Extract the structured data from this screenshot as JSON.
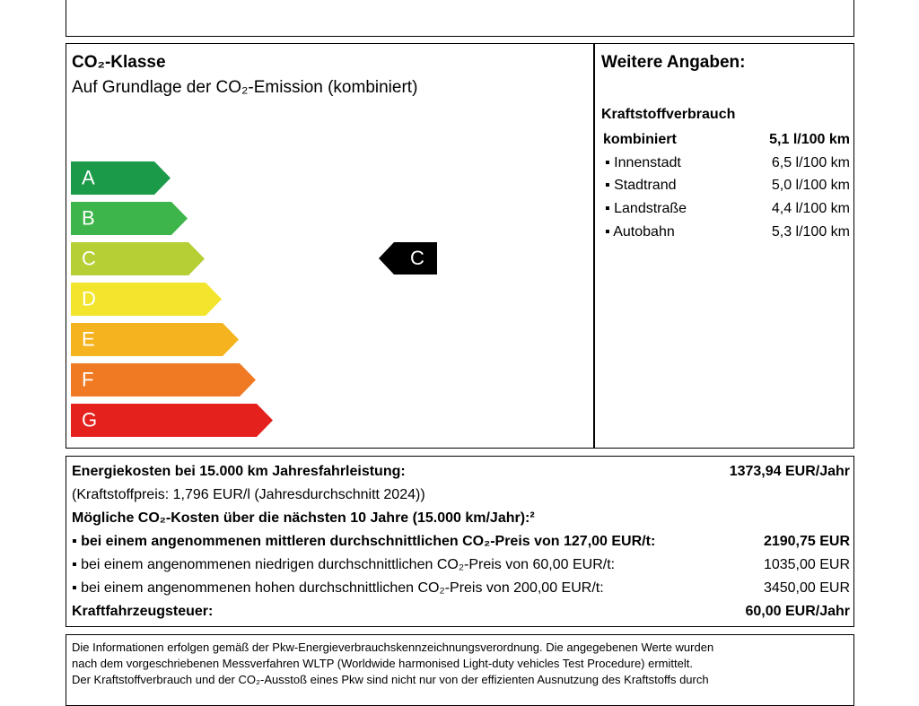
{
  "co2_class": {
    "title": "CO₂-Klasse",
    "subtitle": "Auf Grundlage der CO₂-Emission (kombiniert)",
    "classes": [
      "A",
      "B",
      "C",
      "D",
      "E",
      "F",
      "G"
    ],
    "colors": [
      "#1b9a4a",
      "#3db54a",
      "#b5cf35",
      "#f2e52c",
      "#f5b41f",
      "#ef7a23",
      "#e4211d"
    ],
    "current": "C"
  },
  "further": {
    "title": "Weitere Angaben:",
    "heading": "Kraftstoffverbrauch",
    "rows": [
      [
        "kombiniert",
        "5,1 l/100 km"
      ],
      [
        "▪ Innenstadt",
        "6,5 l/100 km"
      ],
      [
        "▪ Stadtrand",
        "5,0 l/100 km"
      ],
      [
        "▪ Landstraße",
        "4,4 l/100 km"
      ],
      [
        "▪ Autobahn",
        "5,3 l/100 km"
      ]
    ]
  },
  "costs": {
    "rows": [
      [
        "Energiekosten bei 15.000 km Jahresfahrleistung:",
        "1373,94 EUR/Jahr"
      ],
      [
        "(Kraftstoffpreis: 1,796 EUR/l (Jahresdurchschnitt 2024))"
      ],
      [
        "Mögliche CO₂-Kosten über die nächsten 10 Jahre (15.000 km/Jahr):²"
      ],
      [
        "▪ bei einem angenommenen mittleren durchschnittlichen CO₂-Preis von 127,00 EUR/t:",
        "2190,75 EUR"
      ],
      [
        "▪ bei einem angenommenen niedrigen durchschnittlichen CO₂-Preis von 60,00 EUR/t:",
        "1035,00 EUR"
      ],
      [
        "▪ bei einem angenommenen hohen durchschnittlichen CO₂-Preis von 200,00 EUR/t:",
        "3450,00 EUR"
      ],
      [
        "Kraftfahrzeugsteuer:",
        "60,00 EUR/Jahr"
      ]
    ]
  },
  "footer": {
    "lines": [
      "Die Informationen erfolgen gemäß der Pkw-Energieverbrauchskennzeichnungsverordnung. Die angegebenen Werte wurden",
      "nach dem vorgeschriebenen Messverfahren WLTP (Worldwide harmonised Light-duty vehicles Test Procedure) ermittelt.",
      "Der Kraftstoffverbrauch und der CO₂-Ausstoß eines Pkw sind nicht nur von der effizienten Ausnutzung des Kraftstoffs durch"
    ]
  }
}
